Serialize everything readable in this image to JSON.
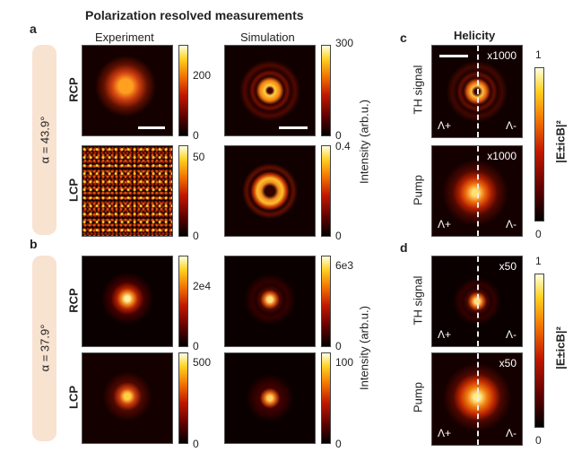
{
  "title": "Polarization resolved measurements",
  "panel_a": {
    "letter": "a",
    "alpha": "α = 43.9°",
    "col_exp": "Experiment",
    "col_sim": "Simulation",
    "row1": "RCP",
    "row2": "LCP",
    "exp_rcp_ticks": [
      "200",
      "0"
    ],
    "sim_rcp_ticks": [
      "300",
      "0"
    ],
    "exp_lcp_ticks": [
      "50",
      "0"
    ],
    "sim_lcp_ticks": [
      "0.4",
      "0"
    ],
    "ylabel": "Intensity (arb.u.)"
  },
  "panel_b": {
    "letter": "b",
    "alpha": "α = 37.9°",
    "row1": "RCP",
    "row2": "LCP",
    "exp_rcp_ticks": [
      "2e4",
      "0"
    ],
    "sim_rcp_ticks": [
      "6e3",
      "0"
    ],
    "exp_lcp_ticks": [
      "500",
      "0"
    ],
    "sim_lcp_ticks": [
      "100",
      "0"
    ],
    "ylabel": "Intensity (arb.u.)"
  },
  "panel_c": {
    "letter": "c",
    "title": "Helicity",
    "row1": "TH signal",
    "row2": "Pump",
    "mult1": "x1000",
    "mult2": "x1000",
    "lam_plus": "Λ+",
    "lam_minus": "Λ-",
    "cbar_ticks": [
      "1",
      "0"
    ],
    "cbar_label": "|E±icB|²"
  },
  "panel_d": {
    "letter": "d",
    "row1": "TH signal",
    "row2": "Pump",
    "mult1": "x50",
    "mult2": "x50",
    "lam_plus": "Λ+",
    "lam_minus": "Λ-",
    "cbar_ticks": [
      "1",
      "0"
    ],
    "cbar_label": "|E±icB|²"
  }
}
